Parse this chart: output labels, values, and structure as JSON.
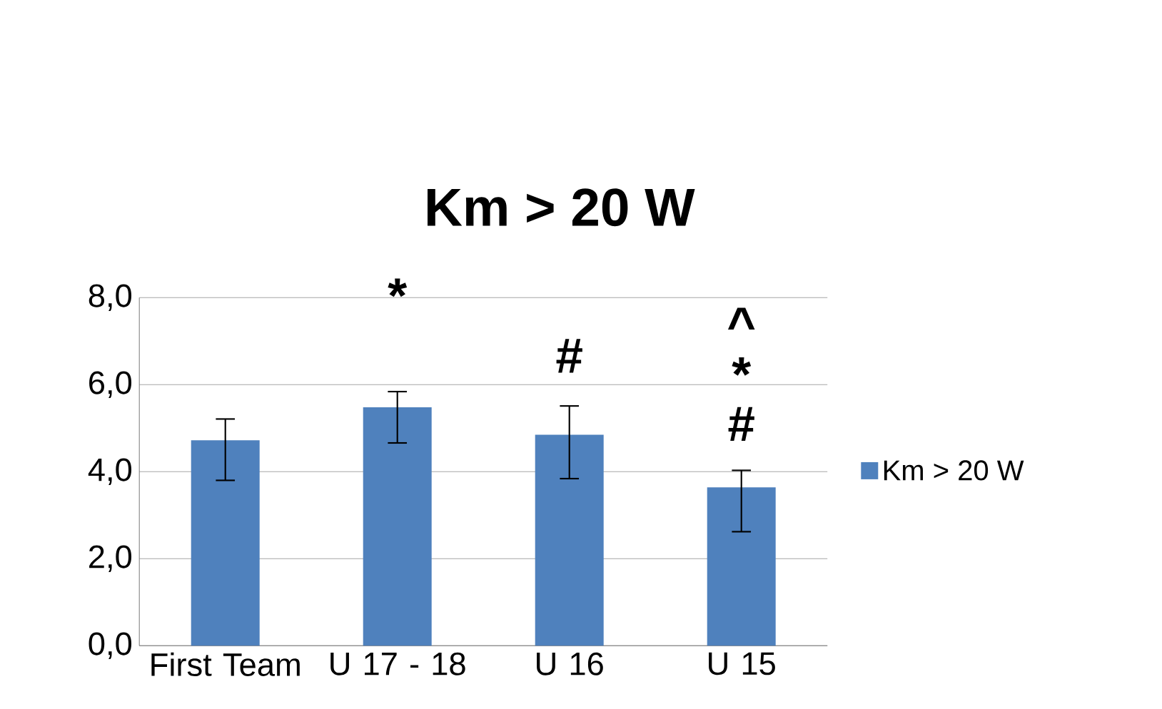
{
  "chart_data": {
    "type": "bar",
    "title": "Km > 20 W",
    "categories": [
      "First Team",
      "U 17 - 18",
      "U 16",
      "U 15"
    ],
    "series": [
      {
        "name": "Km > 20 W",
        "color": "#4f81bd",
        "values": [
          4.72,
          5.48,
          4.85,
          3.64
        ],
        "errors": [
          [
            3.8,
            5.21
          ],
          [
            4.66,
            5.84
          ],
          [
            3.84,
            5.51
          ],
          [
            2.62,
            4.03
          ]
        ]
      }
    ],
    "ylim": [
      0,
      8
    ],
    "yticks": [
      {
        "value": 0,
        "label": "0,0"
      },
      {
        "value": 2,
        "label": "2,0"
      },
      {
        "value": 4,
        "label": "4,0"
      },
      {
        "value": 6,
        "label": "6,0"
      },
      {
        "value": 8,
        "label": "8,0"
      }
    ],
    "grid": "y",
    "legend": "right",
    "annotations": [
      "*",
      "#",
      "#",
      "*",
      "^"
    ]
  }
}
